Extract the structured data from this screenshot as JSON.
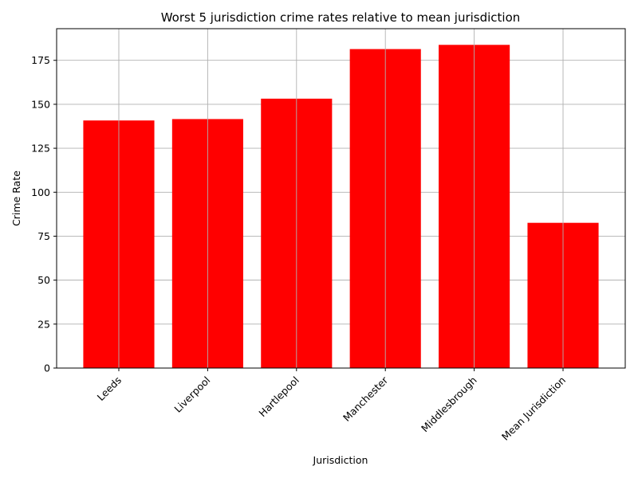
{
  "chart_data": {
    "type": "bar",
    "title": "Worst 5 jurisdiction crime rates relative to mean jurisdiction",
    "xlabel": "Jurisdiction",
    "ylabel": "Crime Rate",
    "categories": [
      "Leeds",
      "Liverpool",
      "Hartlepool",
      "Manchester",
      "Middlesbrough",
      "Mean Jurisdiction"
    ],
    "values": [
      140.8,
      141.6,
      153.2,
      181.4,
      183.8,
      82.6
    ],
    "ylim": [
      0,
      193
    ],
    "yticks": [
      0,
      25,
      50,
      75,
      100,
      125,
      150,
      175
    ],
    "grid": true,
    "bar_color": "#ff0000",
    "grid_color": "#b0b0b0",
    "x_tick_rotation_deg": 45
  }
}
